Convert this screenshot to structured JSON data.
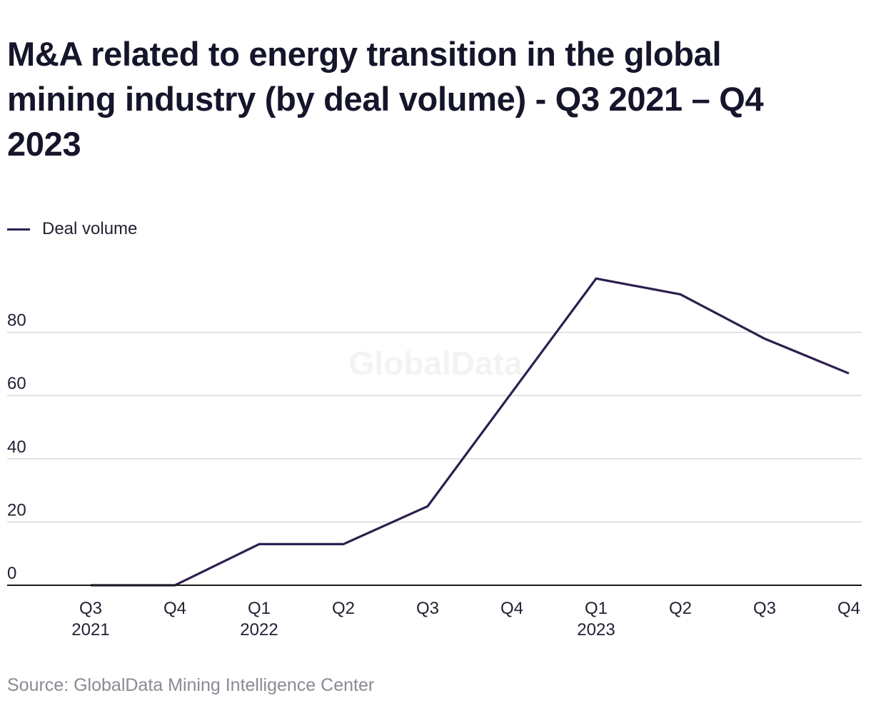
{
  "title": "M&A related to energy transition in the global mining industry (by deal volume) - Q3 2021 – Q4 2023",
  "legend": {
    "label": "Deal volume"
  },
  "source": "Source: GlobalData Mining Intelligence Center",
  "watermark": "GlobalData",
  "colors": {
    "series": "#2e1f4f",
    "grid": "#d9d9d9",
    "axis": "#1a1a1a",
    "text": "#222233",
    "source": "#8a8a94"
  },
  "chart_data": {
    "type": "line",
    "title": "M&A related to energy transition in the global mining industry (by deal volume) - Q3 2021 – Q4 2023",
    "xlabel": "",
    "ylabel": "",
    "categories": [
      [
        "Q3",
        "2021"
      ],
      [
        "Q4",
        ""
      ],
      [
        "Q1",
        "2022"
      ],
      [
        "Q2",
        ""
      ],
      [
        "Q3",
        ""
      ],
      [
        "Q4",
        ""
      ],
      [
        "Q1",
        "2023"
      ],
      [
        "Q2",
        ""
      ],
      [
        "Q3",
        ""
      ],
      [
        "Q4",
        ""
      ]
    ],
    "series": [
      {
        "name": "Deal volume",
        "values": [
          0,
          0,
          13,
          13,
          25,
          61,
          97,
          92,
          78,
          67
        ]
      }
    ],
    "yticks": [
      0,
      20,
      40,
      60,
      80
    ],
    "ylim": [
      0,
      100
    ],
    "grid": true,
    "legend_position": "top-left"
  }
}
